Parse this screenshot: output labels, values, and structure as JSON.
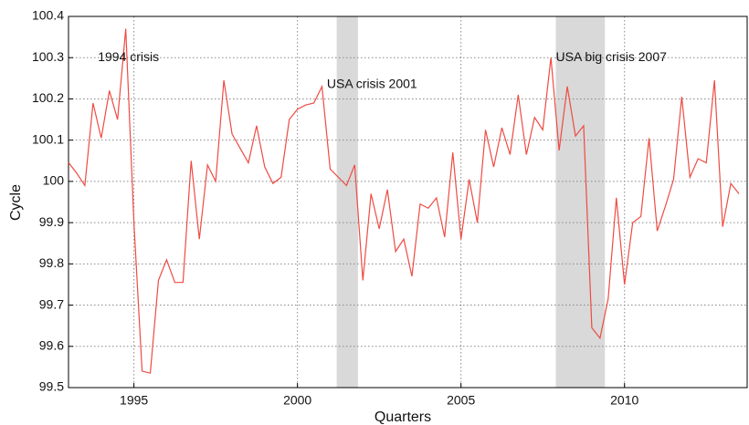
{
  "chart_data": {
    "type": "line",
    "xlabel": "Quarters",
    "ylabel": "Cycle",
    "x": [
      1993,
      1993.25,
      1993.5,
      1993.75,
      1994,
      1994.25,
      1994.5,
      1994.75,
      1995,
      1995.25,
      1995.5,
      1995.75,
      1996,
      1996.25,
      1996.5,
      1996.75,
      1997,
      1997.25,
      1997.5,
      1997.75,
      1998,
      1998.25,
      1998.5,
      1998.75,
      1999,
      1999.25,
      1999.5,
      1999.75,
      2000,
      2000.25,
      2000.5,
      2000.75,
      2001,
      2001.25,
      2001.5,
      2001.75,
      2002,
      2002.25,
      2002.5,
      2002.75,
      2003,
      2003.25,
      2003.5,
      2003.75,
      2004,
      2004.25,
      2004.5,
      2004.75,
      2005,
      2005.25,
      2005.5,
      2005.75,
      2006,
      2006.25,
      2006.5,
      2006.75,
      2007,
      2007.25,
      2007.5,
      2007.75,
      2008,
      2008.25,
      2008.5,
      2008.75,
      2009,
      2009.25,
      2009.5,
      2009.75,
      2010,
      2010.25,
      2010.5,
      2010.75,
      2011,
      2011.25,
      2011.5,
      2011.75,
      2012,
      2012.25,
      2012.5,
      2012.75,
      2013,
      2013.25,
      2013.5
    ],
    "series": [
      {
        "name": "Cycle",
        "color": "#ee4b43",
        "values": [
          100.046,
          100.02,
          99.99,
          100.19,
          100.105,
          100.22,
          100.15,
          100.37,
          99.9,
          99.54,
          99.535,
          99.76,
          99.81,
          99.755,
          99.755,
          100.05,
          99.86,
          100.04,
          100.0,
          100.245,
          100.115,
          100.08,
          100.045,
          100.135,
          100.035,
          99.995,
          100.01,
          100.15,
          100.175,
          100.185,
          100.19,
          100.23,
          100.03,
          100.01,
          99.99,
          100.04,
          99.76,
          99.97,
          99.885,
          99.98,
          99.83,
          99.86,
          99.77,
          99.945,
          99.935,
          99.96,
          99.865,
          100.07,
          99.86,
          100.005,
          99.9,
          100.125,
          100.035,
          100.13,
          100.065,
          100.21,
          100.065,
          100.155,
          100.125,
          100.3,
          100.075,
          100.23,
          100.11,
          100.135,
          99.645,
          99.62,
          99.715,
          99.96,
          99.75,
          99.9,
          99.915,
          100.105,
          99.88,
          99.94,
          100.005,
          100.205,
          100.01,
          100.055,
          100.045,
          100.245,
          99.89,
          99.995,
          99.97
        ]
      }
    ],
    "shaded_regions": [
      [
        2001.2,
        2001.85
      ],
      [
        2007.9,
        2009.4
      ]
    ],
    "shade_color": "#d9d9d9",
    "annotations": [
      {
        "text": "1994 crisis",
        "x": 1993.9,
        "y": 100.3
      },
      {
        "text": "USA crisis 2001",
        "x": 2000.9,
        "y": 100.235
      },
      {
        "text": "USA big crisis 2007",
        "x": 2007.9,
        "y": 100.3
      }
    ],
    "xlim": [
      1993,
      2013.75
    ],
    "xticks": [
      1995,
      2000,
      2005,
      2010
    ],
    "ylim": [
      99.5,
      100.4
    ],
    "yticks": [
      99.5,
      99.6,
      99.7,
      99.8,
      99.9,
      100,
      100.1,
      100.2,
      100.3,
      100.4
    ],
    "grid": true
  }
}
